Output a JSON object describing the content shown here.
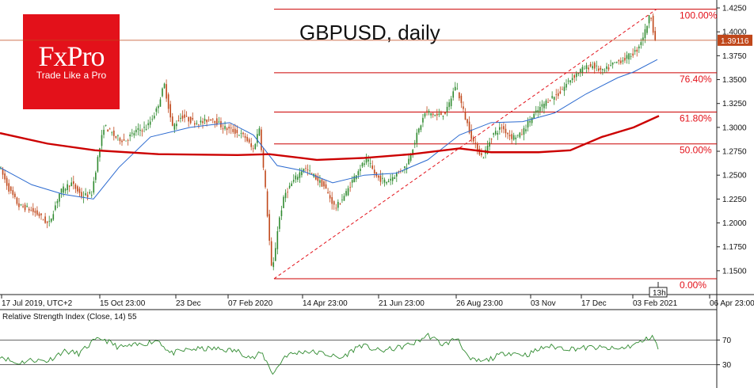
{
  "logo": {
    "brand": "FxPro",
    "tagline": "Trade Like a Pro"
  },
  "chart_data": {
    "type": "candlestick",
    "title": "GBPUSD, daily",
    "ylim": [
      1.13,
      1.43
    ],
    "y_ticks": [
      "1.4250",
      "1.4000",
      "1.3750",
      "1.3500",
      "1.3250",
      "1.3000",
      "1.2750",
      "1.2500",
      "1.2250",
      "1.2000",
      "1.1750",
      "1.1500"
    ],
    "x_ticks": [
      "17 Jul 2019, UTC+2",
      "15 Oct 23:00",
      "23 Dec",
      "07 Feb 2020",
      "14 Apr 23:00",
      "21 Jun 23:00",
      "26 Aug 23:00",
      "03 Nov",
      "17 Dec",
      "03 Feb 2021",
      "06 Apr 23:00"
    ],
    "current_price": "1.39116",
    "cursor_label": "13h",
    "price_path": [
      [
        0,
        1.262
      ],
      [
        14,
        1.235
      ],
      [
        26,
        1.218
      ],
      [
        38,
        1.215
      ],
      [
        52,
        1.208
      ],
      [
        64,
        1.198
      ],
      [
        78,
        1.232
      ],
      [
        92,
        1.242
      ],
      [
        106,
        1.228
      ],
      [
        118,
        1.23
      ],
      [
        126,
        1.268
      ],
      [
        134,
        1.302
      ],
      [
        148,
        1.29
      ],
      [
        160,
        1.286
      ],
      [
        174,
        1.296
      ],
      [
        188,
        1.3
      ],
      [
        200,
        1.318
      ],
      [
        210,
        1.345
      ],
      [
        220,
        1.3
      ],
      [
        232,
        1.312
      ],
      [
        246,
        1.306
      ],
      [
        258,
        1.305
      ],
      [
        270,
        1.31
      ],
      [
        284,
        1.3
      ],
      [
        298,
        1.296
      ],
      [
        312,
        1.29
      ],
      [
        322,
        1.276
      ],
      [
        330,
        1.3
      ],
      [
        338,
        1.232
      ],
      [
        346,
        1.145
      ],
      [
        354,
        1.2
      ],
      [
        362,
        1.23
      ],
      [
        374,
        1.245
      ],
      [
        386,
        1.258
      ],
      [
        398,
        1.25
      ],
      [
        412,
        1.238
      ],
      [
        426,
        1.215
      ],
      [
        440,
        1.232
      ],
      [
        454,
        1.255
      ],
      [
        466,
        1.266
      ],
      [
        478,
        1.248
      ],
      [
        490,
        1.243
      ],
      [
        504,
        1.252
      ],
      [
        516,
        1.26
      ],
      [
        528,
        1.29
      ],
      [
        540,
        1.317
      ],
      [
        554,
        1.312
      ],
      [
        566,
        1.316
      ],
      [
        578,
        1.345
      ],
      [
        590,
        1.31
      ],
      [
        600,
        1.285
      ],
      [
        612,
        1.268
      ],
      [
        624,
        1.292
      ],
      [
        636,
        1.3
      ],
      [
        648,
        1.29
      ],
      [
        660,
        1.292
      ],
      [
        672,
        1.308
      ],
      [
        684,
        1.32
      ],
      [
        696,
        1.33
      ],
      [
        708,
        1.335
      ],
      [
        722,
        1.35
      ],
      [
        736,
        1.36
      ],
      [
        750,
        1.365
      ],
      [
        764,
        1.358
      ],
      [
        778,
        1.367
      ],
      [
        792,
        1.372
      ],
      [
        806,
        1.38
      ],
      [
        816,
        1.398
      ],
      [
        824,
        1.42
      ],
      [
        829,
        1.392
      ]
    ],
    "series": [
      {
        "name": "MA50",
        "color": "#2b6ad0",
        "points": [
          [
            0,
            1.258
          ],
          [
            40,
            1.24
          ],
          [
            80,
            1.23
          ],
          [
            118,
            1.225
          ],
          [
            150,
            1.258
          ],
          [
            190,
            1.29
          ],
          [
            240,
            1.3
          ],
          [
            290,
            1.305
          ],
          [
            320,
            1.292
          ],
          [
            350,
            1.26
          ],
          [
            380,
            1.255
          ],
          [
            420,
            1.242
          ],
          [
            460,
            1.25
          ],
          [
            500,
            1.252
          ],
          [
            540,
            1.266
          ],
          [
            580,
            1.292
          ],
          [
            620,
            1.305
          ],
          [
            660,
            1.306
          ],
          [
            700,
            1.315
          ],
          [
            740,
            1.335
          ],
          [
            780,
            1.352
          ],
          [
            800,
            1.358
          ],
          [
            830,
            1.371
          ]
        ]
      },
      {
        "name": "MA200",
        "color": "#cc0000",
        "points": [
          [
            0,
            1.294
          ],
          [
            60,
            1.283
          ],
          [
            120,
            1.276
          ],
          [
            200,
            1.272
          ],
          [
            300,
            1.271
          ],
          [
            340,
            1.272
          ],
          [
            400,
            1.266
          ],
          [
            460,
            1.268
          ],
          [
            520,
            1.272
          ],
          [
            580,
            1.278
          ],
          [
            620,
            1.274
          ],
          [
            680,
            1.274
          ],
          [
            720,
            1.276
          ],
          [
            760,
            1.29
          ],
          [
            800,
            1.3
          ],
          [
            832,
            1.312
          ]
        ]
      }
    ],
    "fibonacci": {
      "high": 1.4237,
      "low": 1.1416,
      "x_start": 346,
      "levels": [
        {
          "label": "100.00%",
          "value": 1.4237
        },
        {
          "label": "76.40%",
          "value": 1.3572
        },
        {
          "label": "61.80%",
          "value": 1.316
        },
        {
          "label": "50.00%",
          "value": 1.2827
        },
        {
          "label": "0.00%",
          "value": 1.1416
        }
      ]
    },
    "channel_line": {
      "from": [
        346,
        1.1416
      ],
      "to": [
        829,
        1.4237
      ]
    },
    "rsi": {
      "label": "Relative Strength Index (Close, 14) 55",
      "ylim": [
        0,
        100
      ],
      "levels": [
        70,
        30
      ],
      "level_labels": [
        "70",
        "30"
      ],
      "points": [
        [
          0,
          45
        ],
        [
          20,
          32
        ],
        [
          40,
          38
        ],
        [
          60,
          36
        ],
        [
          80,
          52
        ],
        [
          100,
          48
        ],
        [
          118,
          68
        ],
        [
          130,
          72
        ],
        [
          150,
          58
        ],
        [
          175,
          62
        ],
        [
          200,
          70
        ],
        [
          215,
          48
        ],
        [
          240,
          55
        ],
        [
          270,
          56
        ],
        [
          300,
          52
        ],
        [
          320,
          40
        ],
        [
          330,
          50
        ],
        [
          345,
          15
        ],
        [
          360,
          45
        ],
        [
          385,
          52
        ],
        [
          410,
          48
        ],
        [
          430,
          40
        ],
        [
          455,
          62
        ],
        [
          480,
          52
        ],
        [
          505,
          58
        ],
        [
          525,
          66
        ],
        [
          540,
          78
        ],
        [
          560,
          62
        ],
        [
          578,
          74
        ],
        [
          592,
          38
        ],
        [
          610,
          35
        ],
        [
          640,
          50
        ],
        [
          665,
          46
        ],
        [
          690,
          60
        ],
        [
          720,
          56
        ],
        [
          750,
          58
        ],
        [
          780,
          55
        ],
        [
          800,
          62
        ],
        [
          815,
          70
        ],
        [
          824,
          78
        ],
        [
          831,
          55
        ]
      ]
    }
  }
}
